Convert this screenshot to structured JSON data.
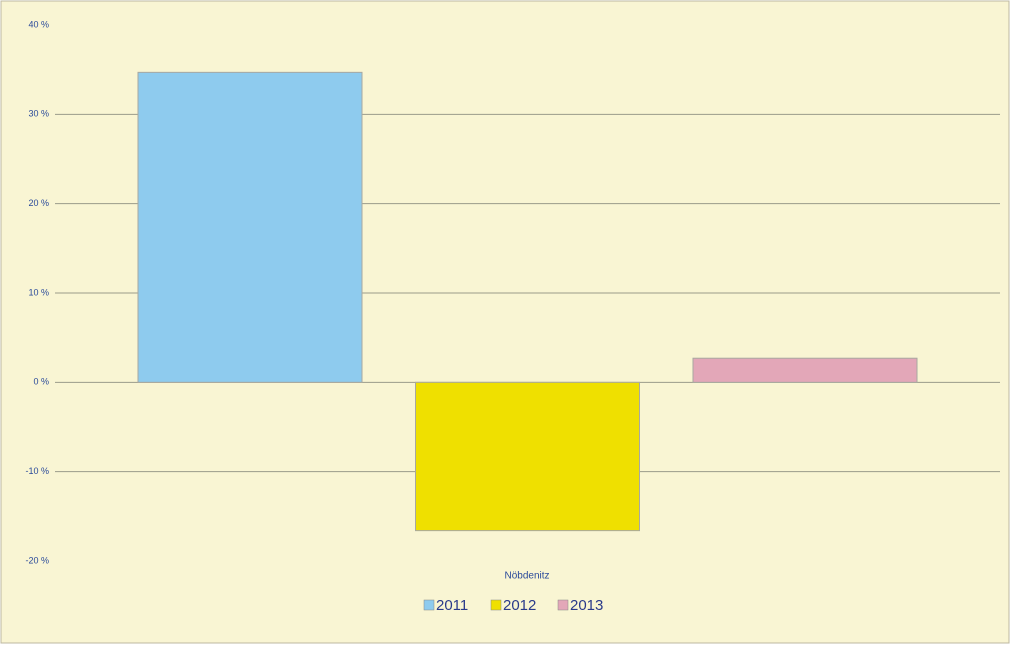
{
  "chart_data": {
    "type": "bar",
    "categories": [
      "Nöbdenitz"
    ],
    "series": [
      {
        "name": "2011",
        "color": "#8ecbee",
        "values": [
          34.7
        ]
      },
      {
        "name": "2012",
        "color": "#efe000",
        "values": [
          -16.6
        ]
      },
      {
        "name": "2013",
        "color": "#e3a7b8",
        "values": [
          2.7
        ]
      }
    ],
    "ylim": [
      -20,
      40
    ],
    "yticks": [
      {
        "value": -20,
        "label": "-20 %"
      },
      {
        "value": -10,
        "label": "-10 %"
      },
      {
        "value": 0,
        "label": "0 %"
      },
      {
        "value": 10,
        "label": "10 %"
      },
      {
        "value": 20,
        "label": "20 %"
      },
      {
        "value": 30,
        "label": "30 %"
      },
      {
        "value": 40,
        "label": "40 %"
      }
    ],
    "grid": true,
    "legend": "bottom"
  }
}
